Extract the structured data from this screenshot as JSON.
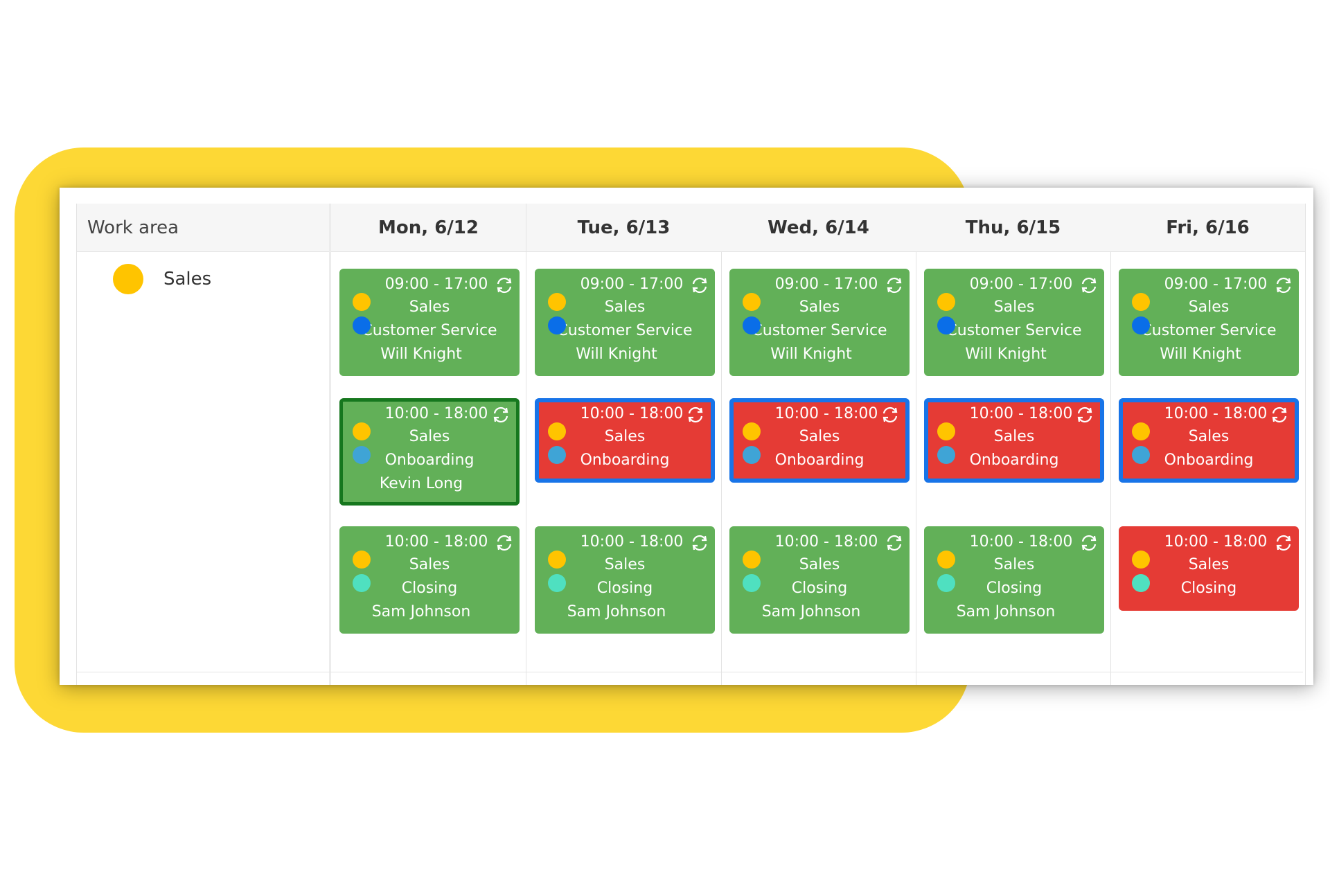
{
  "work_area": {
    "header": "Work area",
    "areas": [
      {
        "label": "Sales",
        "color": "#FFC400"
      }
    ]
  },
  "days": [
    {
      "label": "Mon, 6/12"
    },
    {
      "label": "Tue, 6/13"
    },
    {
      "label": "Wed, 6/14"
    },
    {
      "label": "Thu, 6/15"
    },
    {
      "label": "Fri, 6/16"
    }
  ],
  "colors": {
    "assigned": "#62B058",
    "unassigned": "#E53B35",
    "selected_outline": "#1874E8",
    "active_outline": "#16771E",
    "sales": "#FFC400",
    "customer_service": "#0A6EE8",
    "onboarding": "#3FA4D6",
    "closing": "#4FE0C0",
    "frame": "#FDD835"
  },
  "shifts": [
    [
      {
        "time": "09:00 - 17:00",
        "area": "Sales",
        "position": "Customer Service",
        "position_color": "#0A6EE8",
        "person": "Will Knight",
        "status": "assigned",
        "outline": ""
      },
      {
        "time": "10:00 - 18:00",
        "area": "Sales",
        "position": "Onboarding",
        "position_color": "#3FA4D6",
        "person": "Kevin Long",
        "status": "assigned",
        "outline": "active"
      },
      {
        "time": "10:00 - 18:00",
        "area": "Sales",
        "position": "Closing",
        "position_color": "#4FE0C0",
        "person": "Sam Johnson",
        "status": "assigned",
        "outline": ""
      }
    ],
    [
      {
        "time": "09:00 - 17:00",
        "area": "Sales",
        "position": "Customer Service",
        "position_color": "#0A6EE8",
        "person": "Will Knight",
        "status": "assigned",
        "outline": ""
      },
      {
        "time": "10:00 - 18:00",
        "area": "Sales",
        "position": "Onboarding",
        "position_color": "#3FA4D6",
        "person": "",
        "status": "unassigned",
        "outline": "selected"
      },
      {
        "time": "10:00 - 18:00",
        "area": "Sales",
        "position": "Closing",
        "position_color": "#4FE0C0",
        "person": "Sam Johnson",
        "status": "assigned",
        "outline": ""
      }
    ],
    [
      {
        "time": "09:00 - 17:00",
        "area": "Sales",
        "position": "Customer Service",
        "position_color": "#0A6EE8",
        "person": "Will Knight",
        "status": "assigned",
        "outline": ""
      },
      {
        "time": "10:00 - 18:00",
        "area": "Sales",
        "position": "Onboarding",
        "position_color": "#3FA4D6",
        "person": "",
        "status": "unassigned",
        "outline": "selected"
      },
      {
        "time": "10:00 - 18:00",
        "area": "Sales",
        "position": "Closing",
        "position_color": "#4FE0C0",
        "person": "Sam Johnson",
        "status": "assigned",
        "outline": ""
      }
    ],
    [
      {
        "time": "09:00 - 17:00",
        "area": "Sales",
        "position": "Customer Service",
        "position_color": "#0A6EE8",
        "person": "Will Knight",
        "status": "assigned",
        "outline": ""
      },
      {
        "time": "10:00 - 18:00",
        "area": "Sales",
        "position": "Onboarding",
        "position_color": "#3FA4D6",
        "person": "",
        "status": "unassigned",
        "outline": "selected"
      },
      {
        "time": "10:00 - 18:00",
        "area": "Sales",
        "position": "Closing",
        "position_color": "#4FE0C0",
        "person": "Sam Johnson",
        "status": "assigned",
        "outline": ""
      }
    ],
    [
      {
        "time": "09:00 - 17:00",
        "area": "Sales",
        "position": "Customer Service",
        "position_color": "#0A6EE8",
        "person": "Will Knight",
        "status": "assigned",
        "outline": ""
      },
      {
        "time": "10:00 - 18:00",
        "area": "Sales",
        "position": "Onboarding",
        "position_color": "#3FA4D6",
        "person": "",
        "status": "unassigned",
        "outline": "selected"
      },
      {
        "time": "10:00 - 18:00",
        "area": "Sales",
        "position": "Closing",
        "position_color": "#4FE0C0",
        "person": "",
        "status": "unassigned",
        "outline": ""
      }
    ]
  ]
}
